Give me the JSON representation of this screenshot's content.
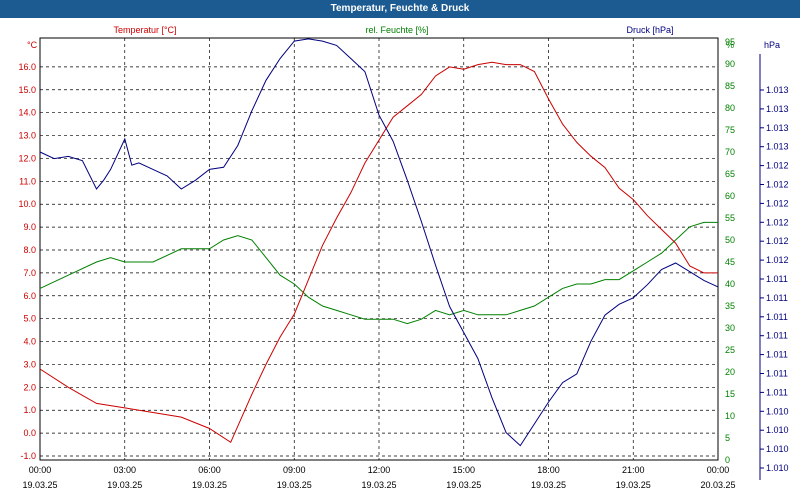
{
  "window": {
    "title": "Temperatur, Feuchte & Druck"
  },
  "chart_data": {
    "type": "line",
    "title": "Temperatur, Feuchte & Druck",
    "xlabel": "",
    "x_ticks": [
      {
        "time": "00:00",
        "date": "19.03.25"
      },
      {
        "time": "03:00",
        "date": "19.03.25"
      },
      {
        "time": "06:00",
        "date": "19.03.25"
      },
      {
        "time": "09:00",
        "date": "19.03.25"
      },
      {
        "time": "12:00",
        "date": "19.03.25"
      },
      {
        "time": "15:00",
        "date": "19.03.25"
      },
      {
        "time": "18:00",
        "date": "19.03.25"
      },
      {
        "time": "21:00",
        "date": "19.03.25"
      },
      {
        "time": "00:00",
        "date": "20.03.25"
      }
    ],
    "xlim": [
      "19.03.25 00:00",
      "20.03.25 00:00"
    ],
    "grid": true,
    "axes": {
      "temperature": {
        "unit": "°C",
        "ylim": [
          -1.5,
          17.0
        ],
        "ticks": [
          "-1.0",
          "0.0",
          "1.0",
          "2.0",
          "3.0",
          "4.0",
          "5.0",
          "6.0",
          "7.0",
          "8.0",
          "9.0",
          "10.0",
          "11.0",
          "12.0",
          "13.0",
          "14.0",
          "15.0",
          "16.0"
        ],
        "color": "#cc0000"
      },
      "humidity": {
        "unit": "%",
        "ylim": [
          0,
          95
        ],
        "ticks": [
          "0",
          "5",
          "10",
          "15",
          "20",
          "25",
          "30",
          "35",
          "40",
          "45",
          "50",
          "55",
          "60",
          "65",
          "70",
          "75",
          "80",
          "85",
          "90",
          "95"
        ],
        "color": "#008000"
      },
      "pressure": {
        "unit": "hPa",
        "ticks": [
          "1.010",
          "1.010",
          "1.010",
          "1.010",
          "1.011",
          "1.011",
          "1.011",
          "1.011",
          "1.011",
          "1.011",
          "1.011",
          "1.012",
          "1.012",
          "1.012",
          "1.012",
          "1.012",
          "1.012",
          "1.013",
          "1.013",
          "1.013",
          "1.013"
        ],
        "color": "#000080"
      }
    },
    "series": [
      {
        "name": "Temperatur [°C]",
        "axis": "temperature",
        "color": "#cc0000",
        "x": [
          "00:00",
          "01:00",
          "02:00",
          "03:00",
          "04:00",
          "05:00",
          "06:00",
          "06:45",
          "07:30",
          "08:00",
          "08:30",
          "09:00",
          "09:30",
          "10:00",
          "10:30",
          "11:00",
          "11:30",
          "12:00",
          "12:30",
          "13:00",
          "13:30",
          "14:00",
          "14:30",
          "15:00",
          "15:30",
          "16:00",
          "16:30",
          "17:00",
          "17:30",
          "18:00",
          "18:30",
          "19:00",
          "19:30",
          "20:00",
          "20:30",
          "21:00",
          "21:30",
          "22:00",
          "22:30",
          "23:00",
          "23:30",
          "24:00"
        ],
        "values": [
          2.8,
          2.0,
          1.3,
          1.1,
          0.9,
          0.7,
          0.2,
          -0.4,
          1.7,
          3.0,
          4.2,
          5.2,
          6.7,
          8.2,
          9.4,
          10.5,
          11.8,
          12.8,
          13.8,
          14.3,
          14.8,
          15.6,
          16.0,
          15.9,
          16.1,
          16.2,
          16.1,
          16.1,
          15.8,
          14.6,
          13.5,
          12.7,
          12.1,
          11.6,
          10.7,
          10.2,
          9.5,
          8.9,
          8.3,
          7.3,
          7.0,
          7.0
        ]
      },
      {
        "name": "rel. Feuchte [%]",
        "axis": "humidity",
        "color": "#008000",
        "x": [
          "00:00",
          "01:00",
          "02:00",
          "02:30",
          "03:00",
          "04:00",
          "05:00",
          "06:00",
          "06:30",
          "07:00",
          "07:30",
          "08:00",
          "08:30",
          "09:00",
          "09:30",
          "10:00",
          "10:30",
          "11:00",
          "11:30",
          "12:00",
          "12:30",
          "13:00",
          "13:30",
          "14:00",
          "14:30",
          "15:00",
          "15:30",
          "16:00",
          "16:30",
          "17:00",
          "17:30",
          "18:00",
          "18:30",
          "19:00",
          "19:30",
          "20:00",
          "20:30",
          "21:00",
          "21:30",
          "22:00",
          "22:30",
          "23:00",
          "23:30",
          "24:00"
        ],
        "values": [
          39,
          42,
          45,
          46,
          45,
          45,
          48,
          48,
          50,
          51,
          50,
          46,
          42,
          40,
          37,
          35,
          34,
          33,
          32,
          32,
          32,
          31,
          32,
          34,
          33,
          34,
          33,
          33,
          33,
          34,
          35,
          37,
          39,
          40,
          40,
          41,
          41,
          43,
          45,
          47,
          50,
          53,
          54,
          54
        ]
      },
      {
        "name": "Druck [hPa]",
        "axis": "pressure",
        "color": "#000080",
        "x": [
          "00:00",
          "00:30",
          "01:00",
          "01:30",
          "02:00",
          "02:15",
          "02:30",
          "03:00",
          "03:15",
          "03:30",
          "04:00",
          "04:30",
          "05:00",
          "05:30",
          "06:00",
          "06:30",
          "07:00",
          "07:30",
          "08:00",
          "08:30",
          "09:00",
          "09:30",
          "10:00",
          "10:30",
          "11:00",
          "11:30",
          "12:00",
          "12:30",
          "13:00",
          "13:30",
          "14:00",
          "14:30",
          "15:00",
          "15:30",
          "16:00",
          "16:30",
          "17:00",
          "17:30",
          "18:00",
          "18:30",
          "19:00",
          "19:30",
          "20:00",
          "20:30",
          "21:00",
          "21:30",
          "22:00",
          "22:30",
          "23:00",
          "23:30",
          "24:00"
        ],
        "index_values": [
          13.7,
          13.4,
          13.5,
          13.3,
          12.0,
          12.4,
          12.9,
          14.3,
          13.1,
          13.2,
          12.9,
          12.6,
          12.0,
          12.4,
          12.9,
          13.0,
          14.0,
          15.6,
          17.0,
          18.0,
          18.8,
          18.9,
          18.8,
          18.6,
          18.0,
          17.4,
          15.4,
          14.2,
          12.4,
          10.5,
          8.5,
          6.6,
          5.4,
          4.2,
          2.4,
          0.8,
          0.2,
          1.2,
          2.2,
          3.1,
          3.5,
          5.0,
          6.2,
          6.7,
          7.0,
          7.6,
          8.3,
          8.6,
          8.2,
          7.8,
          7.5
        ]
      }
    ],
    "legend": [
      {
        "label": "Temperatur [°C]",
        "color": "#cc0000",
        "position": "top-left"
      },
      {
        "label": "rel. Feuchte [%]",
        "color": "#008000",
        "position": "top-right"
      },
      {
        "label": "Druck [hPa]",
        "color": "#000080",
        "position": "top-right"
      }
    ]
  }
}
